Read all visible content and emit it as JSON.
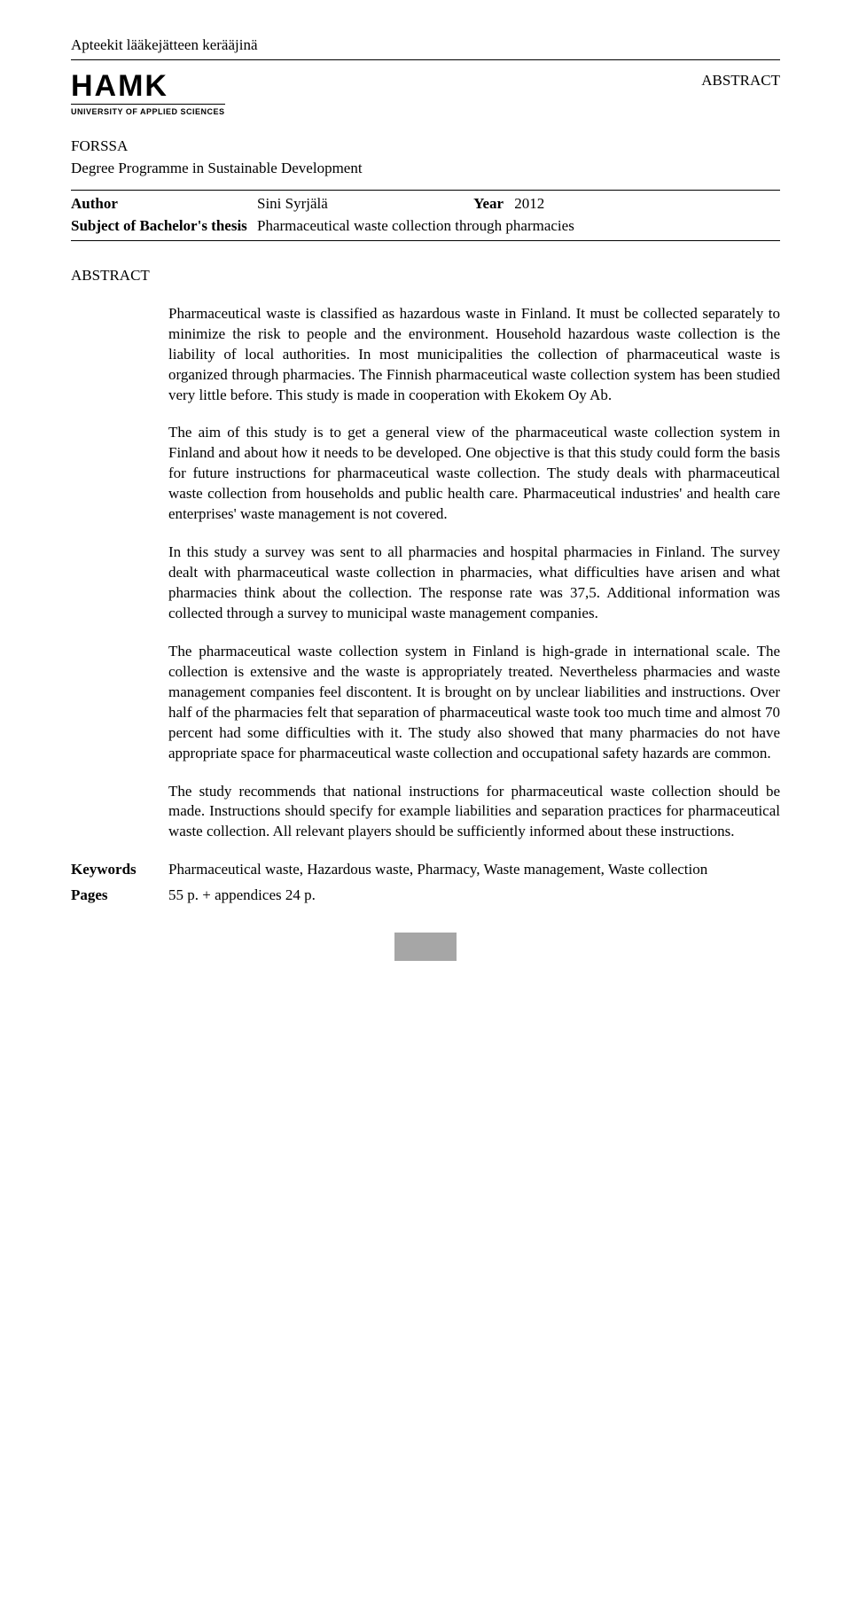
{
  "running_header": "Apteekit lääkejätteen kerääjinä",
  "logo": {
    "main": "HAMK",
    "sub": "UNIVERSITY OF APPLIED SCIENCES"
  },
  "abstract_label": "ABSTRACT",
  "institution": "FORSSA",
  "programme": "Degree Programme in Sustainable Development",
  "author_label": "Author",
  "author_name": "Sini Syrjälä",
  "year_label": "Year",
  "year_value": "2012",
  "subject_label": "Subject of Bachelor's thesis",
  "subject_value": "Pharmaceutical waste collection through pharmacies",
  "section_heading": "ABSTRACT",
  "paragraphs": {
    "p1": "Pharmaceutical waste is classified as hazardous waste in Finland. It must be collected separately to minimize the risk to people and the environment. Household hazardous waste collection is the liability of local authorities. In most municipalities the collection of pharmaceutical waste is organized through pharmacies. The Finnish pharmaceutical waste collection system has been studied very little before. This study is made in cooperation with Ekokem Oy Ab.",
    "p2": "The aim of this study is to get a general view of the pharmaceutical waste collection system in Finland and about how it needs to be developed. One objective is that this study could form the basis for future instructions for pharmaceutical waste collection. The study deals with pharmaceutical waste collection from households and public health care. Pharmaceutical industries' and health care enterprises' waste management is not covered.",
    "p3": "In this study a survey was sent to all pharmacies and hospital pharmacies in Finland. The survey dealt with pharmaceutical waste collection in pharmacies, what difficulties have arisen and what pharmacies think about the collection. The response rate was 37,5. Additional information was collected through a survey to municipal waste management companies.",
    "p4": "The pharmaceutical waste collection system in Finland is high-grade in international scale. The collection is extensive and the waste is appropriately treated. Nevertheless pharmacies and waste management companies feel discontent. It is brought on by unclear liabilities and instructions. Over half of the pharmacies felt that separation of pharmaceutical waste took too much time and almost 70 percent had some difficulties with it. The study also showed that many pharmacies do not have appropriate space for pharmaceutical waste collection and occupational safety hazards are common.",
    "p5": "The study recommends that national instructions for pharmaceutical waste collection should be made. Instructions should specify for example liabilities and separation practices for pharmaceutical waste collection. All relevant players should be sufficiently informed about these instructions."
  },
  "keywords_label": "Keywords",
  "keywords_value": "Pharmaceutical waste, Hazardous waste, Pharmacy, Waste management, Waste collection",
  "pages_label": "Pages",
  "pages_value": "55 p. + appendices 24 p.",
  "colors": {
    "text": "#000000",
    "background": "#ffffff",
    "footer_bar": "#a6a6a6"
  }
}
